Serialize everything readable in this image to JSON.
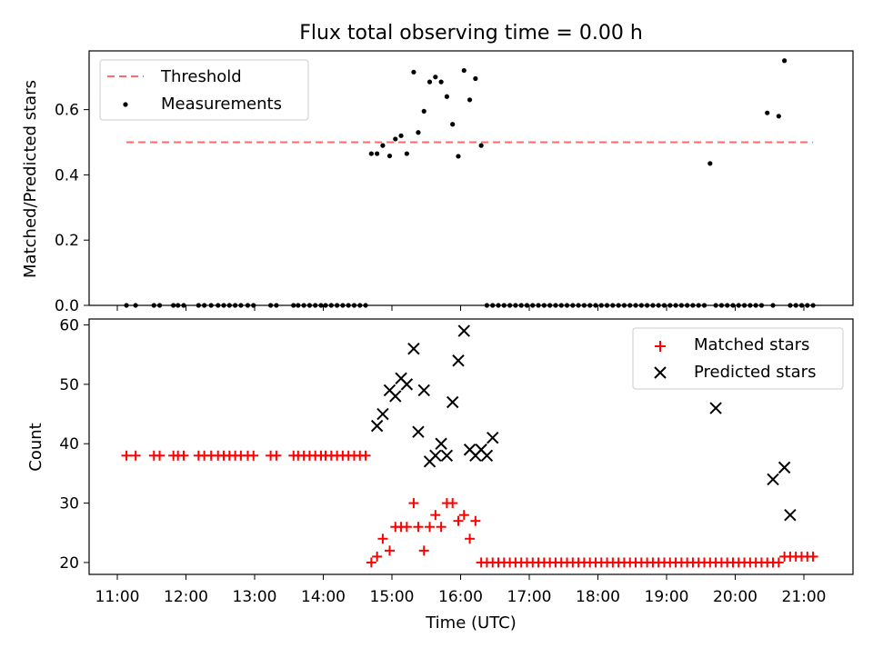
{
  "chart_data": [
    {
      "type": "scatter",
      "title": "Flux total observing time = 0.00 h",
      "xlabel": "",
      "ylabel": "Matched/Predicted stars",
      "xlim": [
        "11:00",
        "21:00"
      ],
      "ylim": [
        0,
        0.78
      ],
      "yticks": [
        "0.0",
        "0.2",
        "0.4",
        "0.6"
      ],
      "legend": {
        "position": "upper-left",
        "entries": [
          "Threshold",
          "Measurements"
        ]
      },
      "threshold": {
        "name": "Threshold",
        "value": 0.5,
        "x_start": "11:08",
        "x_end": "21:08",
        "color": "#ff6b6b"
      },
      "measurements": {
        "name": "Measurements",
        "x": [
          "11:08",
          "11:16",
          "11:32",
          "11:37",
          "11:49",
          "11:53",
          "11:58",
          "12:11",
          "12:16",
          "12:22",
          "12:28",
          "12:33",
          "12:38",
          "12:43",
          "12:48",
          "12:54",
          "12:59",
          "13:14",
          "13:19",
          "13:34",
          "13:38",
          "13:43",
          "13:48",
          "13:53",
          "13:58",
          "14:02",
          "14:07",
          "14:12",
          "14:17",
          "14:22",
          "14:27",
          "14:32",
          "14:37",
          "14:42",
          "14:47",
          "14:52",
          "14:58",
          "15:03",
          "15:08",
          "15:13",
          "15:19",
          "15:23",
          "15:28",
          "15:33",
          "15:38",
          "15:43",
          "15:48",
          "15:53",
          "15:58",
          "16:03",
          "16:08",
          "16:13",
          "16:18",
          "16:23",
          "16:28",
          "16:33",
          "16:38",
          "16:43",
          "16:48",
          "16:53",
          "16:58",
          "17:03",
          "17:08",
          "17:13",
          "17:18",
          "17:23",
          "17:28",
          "17:33",
          "17:38",
          "17:43",
          "17:48",
          "17:53",
          "17:58",
          "18:03",
          "18:08",
          "18:13",
          "18:18",
          "18:23",
          "18:28",
          "18:33",
          "18:38",
          "18:43",
          "18:48",
          "18:53",
          "18:58",
          "19:03",
          "19:08",
          "19:13",
          "19:18",
          "19:23",
          "19:28",
          "19:33",
          "19:38",
          "19:43",
          "19:48",
          "19:53",
          "19:58",
          "20:03",
          "20:08",
          "20:13",
          "20:18",
          "20:23",
          "20:28",
          "20:33",
          "20:38",
          "20:43",
          "20:48",
          "20:53",
          "20:58",
          "21:03",
          "21:08"
        ],
        "y": [
          0,
          0,
          0,
          0,
          0,
          0,
          0,
          0,
          0,
          0,
          0,
          0,
          0,
          0,
          0,
          0,
          0,
          0,
          0,
          0,
          0,
          0,
          0,
          0,
          0,
          0,
          0,
          0,
          0,
          0,
          0,
          0,
          0,
          0.465,
          0.465,
          0.49,
          0.458,
          0.51,
          0.52,
          0.465,
          0.715,
          0.53,
          0.595,
          0.685,
          0.7,
          0.685,
          0.64,
          0.555,
          0.457,
          0.72,
          0.63,
          0.695,
          0.49,
          0,
          0,
          0,
          0,
          0,
          0,
          0,
          0,
          0,
          0,
          0,
          0,
          0,
          0,
          0,
          0,
          0,
          0,
          0,
          0,
          0,
          0,
          0,
          0,
          0,
          0,
          0,
          0,
          0,
          0,
          0,
          0,
          0,
          0,
          0,
          0,
          0,
          0,
          0,
          0.435,
          0,
          0,
          0,
          0,
          0,
          0,
          0,
          0,
          0,
          0.59,
          0,
          0.58,
          0.75,
          0,
          0,
          0,
          0,
          0
        ]
      }
    },
    {
      "type": "scatter",
      "title": "",
      "xlabel": "Time (UTC)",
      "ylabel": "Count",
      "xlim": [
        "11:00",
        "21:00"
      ],
      "xticks": [
        "11:00",
        "12:00",
        "13:00",
        "14:00",
        "15:00",
        "16:00",
        "17:00",
        "18:00",
        "19:00",
        "20:00",
        "21:00"
      ],
      "ylim": [
        18,
        61
      ],
      "yticks": [
        "20",
        "30",
        "40",
        "50",
        "60"
      ],
      "legend": {
        "position": "upper-right",
        "entries": [
          "Matched stars",
          "Predicted stars"
        ]
      },
      "matched": {
        "name": "Matched stars",
        "color": "#ff0000",
        "x": [
          "11:08",
          "11:16",
          "11:32",
          "11:37",
          "11:49",
          "11:53",
          "11:58",
          "12:11",
          "12:16",
          "12:22",
          "12:28",
          "12:33",
          "12:38",
          "12:43",
          "12:48",
          "12:54",
          "12:59",
          "13:14",
          "13:19",
          "13:34",
          "13:38",
          "13:43",
          "13:48",
          "13:53",
          "13:58",
          "14:02",
          "14:07",
          "14:12",
          "14:17",
          "14:22",
          "14:27",
          "14:32",
          "14:37",
          "14:42",
          "14:47",
          "14:52",
          "14:58",
          "15:03",
          "15:08",
          "15:13",
          "15:19",
          "15:23",
          "15:28",
          "15:33",
          "15:38",
          "15:43",
          "15:48",
          "15:53",
          "15:58",
          "16:03",
          "16:08",
          "16:13",
          "16:18",
          "16:23",
          "16:28",
          "16:33",
          "16:38",
          "16:43",
          "16:48",
          "16:53",
          "16:58",
          "17:03",
          "17:08",
          "17:13",
          "17:18",
          "17:23",
          "17:28",
          "17:33",
          "17:38",
          "17:43",
          "17:48",
          "17:53",
          "17:58",
          "18:03",
          "18:08",
          "18:13",
          "18:18",
          "18:23",
          "18:28",
          "18:33",
          "18:38",
          "18:43",
          "18:48",
          "18:53",
          "18:58",
          "19:03",
          "19:08",
          "19:13",
          "19:18",
          "19:23",
          "19:28",
          "19:33",
          "19:38",
          "19:43",
          "19:48",
          "19:53",
          "19:58",
          "20:03",
          "20:08",
          "20:13",
          "20:18",
          "20:23",
          "20:28",
          "20:33",
          "20:38",
          "20:43",
          "20:48",
          "20:53",
          "20:58",
          "21:03",
          "21:08"
        ],
        "y": [
          38,
          38,
          38,
          38,
          38,
          38,
          38,
          38,
          38,
          38,
          38,
          38,
          38,
          38,
          38,
          38,
          38,
          38,
          38,
          38,
          38,
          38,
          38,
          38,
          38,
          38,
          38,
          38,
          38,
          38,
          38,
          38,
          38,
          20,
          21,
          24,
          22,
          26,
          26,
          26,
          30,
          26,
          22,
          26,
          28,
          26,
          30,
          30,
          27,
          28,
          24,
          27,
          20,
          20,
          20,
          20,
          20,
          20,
          20,
          20,
          20,
          20,
          20,
          20,
          20,
          20,
          20,
          20,
          20,
          20,
          20,
          20,
          20,
          20,
          20,
          20,
          20,
          20,
          20,
          20,
          20,
          20,
          20,
          20,
          20,
          20,
          20,
          20,
          20,
          20,
          20,
          20,
          20,
          20,
          20,
          20,
          20,
          20,
          20,
          20,
          20,
          20,
          20,
          20,
          20,
          21,
          21,
          21,
          21,
          21,
          21
        ]
      },
      "predicted": {
        "name": "Predicted stars",
        "color": "#000000",
        "x": [
          "14:47",
          "14:52",
          "14:58",
          "15:03",
          "15:08",
          "15:13",
          "15:19",
          "15:23",
          "15:28",
          "15:33",
          "15:38",
          "15:43",
          "15:48",
          "15:53",
          "15:58",
          "16:03",
          "16:08",
          "16:13",
          "16:18",
          "16:23",
          "16:28",
          "19:43",
          "20:33",
          "20:43",
          "20:48"
        ],
        "y": [
          43,
          45,
          49,
          48,
          51,
          50,
          56,
          42,
          49,
          37,
          38,
          40,
          38,
          47,
          54,
          59,
          39,
          38,
          39,
          38,
          41,
          46,
          34,
          36,
          28
        ]
      }
    }
  ]
}
